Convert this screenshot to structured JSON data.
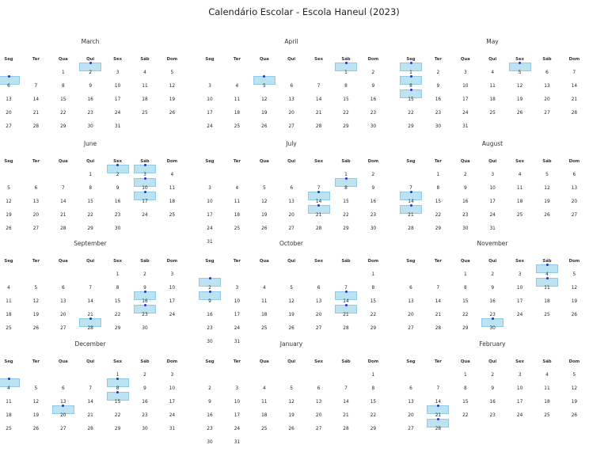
{
  "title": "Calendário Escolar - Escola Haneul (2023)",
  "weekdays": [
    "Seg",
    "Ter",
    "Qua",
    "Qui",
    "Sex",
    "Sáb",
    "Dom"
  ],
  "colors": {
    "highlight_fill": "#bde3f3",
    "highlight_border": "#8fcbe6",
    "dot": "#1f2ecc"
  },
  "months": [
    {
      "name": "March",
      "start_offset": 2,
      "days": 31,
      "highlights": [
        2,
        6
      ]
    },
    {
      "name": "April",
      "start_offset": 5,
      "days": 30,
      "highlights": [
        1,
        5
      ]
    },
    {
      "name": "May",
      "start_offset": 0,
      "days": 31,
      "highlights": [
        1,
        5,
        8,
        15
      ]
    },
    {
      "name": "June",
      "start_offset": 3,
      "days": 30,
      "highlights": [
        2,
        3,
        10,
        17
      ]
    },
    {
      "name": "July",
      "start_offset": 5,
      "days": 31,
      "highlights": [
        8,
        14,
        21
      ]
    },
    {
      "name": "August",
      "start_offset": 1,
      "days": 31,
      "highlights": [
        14,
        21
      ]
    },
    {
      "name": "September",
      "start_offset": 4,
      "days": 30,
      "highlights": [
        16,
        23,
        28
      ]
    },
    {
      "name": "October",
      "start_offset": 6,
      "days": 31,
      "highlights": [
        2,
        9,
        14,
        21
      ]
    },
    {
      "name": "November",
      "start_offset": 2,
      "days": 30,
      "highlights": [
        4,
        11,
        30
      ]
    },
    {
      "name": "December",
      "start_offset": 4,
      "days": 31,
      "highlights": [
        4,
        8,
        15,
        20
      ]
    },
    {
      "name": "January",
      "start_offset": 6,
      "days": 31,
      "highlights": []
    },
    {
      "name": "February",
      "start_offset": 2,
      "days": 28,
      "highlights": [
        21,
        28
      ]
    }
  ]
}
